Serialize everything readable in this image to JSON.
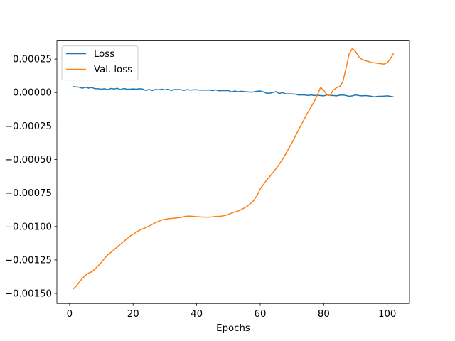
{
  "chart_data": {
    "type": "line",
    "title": "",
    "xlabel": "Epochs",
    "ylabel": "",
    "xlim": [
      -4,
      107
    ],
    "ylim": [
      -0.001575,
      0.000385
    ],
    "xticks": [
      0,
      20,
      40,
      60,
      80,
      100
    ],
    "xtick_labels": [
      "0",
      "20",
      "40",
      "60",
      "80",
      "100"
    ],
    "yticks": [
      0.00025,
      0.0,
      -0.00025,
      -0.0005,
      -0.00075,
      -0.001,
      -0.00125,
      -0.0015
    ],
    "ytick_labels": [
      "0.00025",
      "0.00000",
      "−0.00025",
      "−0.00050",
      "−0.00075",
      "−0.00100",
      "−0.00125",
      "−0.00150"
    ],
    "grid": false,
    "legend_position": "upper-left",
    "series": [
      {
        "name": "Loss",
        "color": "#1f77b4",
        "x": [
          1,
          2,
          3,
          4,
          5,
          6,
          7,
          8,
          9,
          10,
          11,
          12,
          13,
          14,
          15,
          16,
          17,
          18,
          19,
          20,
          21,
          22,
          23,
          24,
          25,
          26,
          27,
          28,
          29,
          30,
          31,
          32,
          33,
          34,
          35,
          36,
          37,
          38,
          39,
          40,
          41,
          42,
          43,
          44,
          45,
          46,
          47,
          48,
          49,
          50,
          51,
          52,
          53,
          54,
          55,
          56,
          57,
          58,
          59,
          60,
          61,
          62,
          63,
          64,
          65,
          66,
          67,
          68,
          69,
          70,
          71,
          72,
          73,
          74,
          75,
          76,
          77,
          78,
          79,
          80,
          81,
          82,
          83,
          84,
          85,
          86,
          87,
          88,
          89,
          90,
          91,
          92,
          93,
          94,
          95,
          96,
          97,
          98,
          99,
          100,
          101,
          102
        ],
        "y": [
          4.5e-05,
          4.2e-05,
          4e-05,
          3.2e-05,
          4e-05,
          3.3e-05,
          3.8e-05,
          2.8e-05,
          2.8e-05,
          2.5e-05,
          2.8e-05,
          2.2e-05,
          3e-05,
          2.6e-05,
          3.2e-05,
          2.2e-05,
          3e-05,
          2.5e-05,
          2.5e-05,
          2.7e-05,
          2.5e-05,
          2.8e-05,
          2.6e-05,
          1.5e-05,
          2.3e-05,
          1.5e-05,
          2.3e-05,
          2e-05,
          2.5e-05,
          2e-05,
          2.5e-05,
          1.5e-05,
          2.2e-05,
          2.2e-05,
          2.1e-05,
          1.6e-05,
          2.2e-05,
          1.8e-05,
          2e-05,
          2e-05,
          1.8e-05,
          1.9e-05,
          1.8e-05,
          1.9e-05,
          1.4e-05,
          2e-05,
          1.3e-05,
          1.5e-05,
          1.4e-05,
          1.5e-05,
          4e-06,
          1.2e-05,
          6e-06,
          1e-05,
          7e-06,
          5e-06,
          3e-06,
          5e-06,
          1e-05,
          1.1e-05,
          5e-06,
          -5e-06,
          -5e-06,
          0.0,
          7e-06,
          -8e-06,
          0.0,
          -1e-05,
          -1e-05,
          -1e-05,
          -1.2e-05,
          -1.8e-05,
          -1.8e-05,
          -1.8e-05,
          -2.2e-05,
          -1.8e-05,
          -2.2e-05,
          -2e-05,
          -2.3e-05,
          -2.5e-05,
          -1.8e-05,
          -2.2e-05,
          -2.2e-05,
          -2.5e-05,
          -2e-05,
          -1.8e-05,
          -2.2e-05,
          -2.8e-05,
          -2.5e-05,
          -1.8e-05,
          -2.2e-05,
          -2.5e-05,
          -2.3e-05,
          -2.5e-05,
          -2.8e-05,
          -3.3e-05,
          -2.8e-05,
          -2.8e-05,
          -2.7e-05,
          -2.5e-05,
          -2.8e-05,
          -3.3e-05
        ]
      },
      {
        "name": "Val. loss",
        "color": "#ff7f0e",
        "x": [
          1,
          2,
          3,
          4,
          5,
          6,
          7,
          8,
          9,
          10,
          11,
          12,
          13,
          14,
          15,
          16,
          17,
          18,
          19,
          20,
          21,
          22,
          23,
          24,
          25,
          26,
          27,
          28,
          29,
          30,
          31,
          32,
          33,
          34,
          35,
          36,
          37,
          38,
          39,
          40,
          41,
          42,
          43,
          44,
          45,
          46,
          47,
          48,
          49,
          50,
          51,
          52,
          53,
          54,
          55,
          56,
          57,
          58,
          59,
          60,
          61,
          62,
          63,
          64,
          65,
          66,
          67,
          68,
          69,
          70,
          71,
          72,
          73,
          74,
          75,
          76,
          77,
          78,
          79,
          80,
          81,
          82,
          83,
          84,
          85,
          86,
          87,
          88,
          89,
          90,
          91,
          92,
          93,
          94,
          95,
          96,
          97,
          98,
          99,
          100,
          101,
          102
        ],
        "y": [
          -0.001468,
          -0.001448,
          -0.001418,
          -0.001388,
          -0.001365,
          -0.001348,
          -0.001338,
          -0.001318,
          -0.001293,
          -0.001268,
          -0.001238,
          -0.001213,
          -0.001193,
          -0.001173,
          -0.001153,
          -0.001133,
          -0.001113,
          -0.001093,
          -0.001073,
          -0.001058,
          -0.001043,
          -0.001028,
          -0.001018,
          -0.001008,
          -0.000998,
          -0.000985,
          -0.000972,
          -0.000962,
          -0.000952,
          -0.000947,
          -0.000943,
          -0.00094,
          -0.000938,
          -0.000935,
          -0.000933,
          -0.000927,
          -0.000923,
          -0.000923,
          -0.000925,
          -0.000927,
          -0.000928,
          -0.00093,
          -0.00093,
          -0.00093,
          -0.000928,
          -0.000925,
          -0.000925,
          -0.000922,
          -0.000918,
          -0.00091,
          -0.0009,
          -0.000892,
          -0.000885,
          -0.000875,
          -0.000862,
          -0.000848,
          -0.000828,
          -0.000805,
          -0.00077,
          -0.00072,
          -0.000688,
          -0.000655,
          -0.000628,
          -0.000598,
          -0.000568,
          -0.000536,
          -0.0005,
          -0.00046,
          -0.000418,
          -0.000376,
          -0.000328,
          -0.000283,
          -0.000238,
          -0.000193,
          -0.000148,
          -0.000108,
          -6.8e-05,
          -1.8e-05,
          3.8e-05,
          1.8e-05,
          -1.5e-05,
          -2.2e-05,
          1.8e-05,
          3.5e-05,
          4.5e-05,
          7.8e-05,
          0.000178,
          0.000288,
          0.000328,
          0.000308,
          0.000268,
          0.000248,
          0.000238,
          0.000233,
          0.000224,
          0.000222,
          0.000218,
          0.000215,
          0.000212,
          0.000222,
          0.000253,
          0.000293
        ]
      }
    ]
  }
}
